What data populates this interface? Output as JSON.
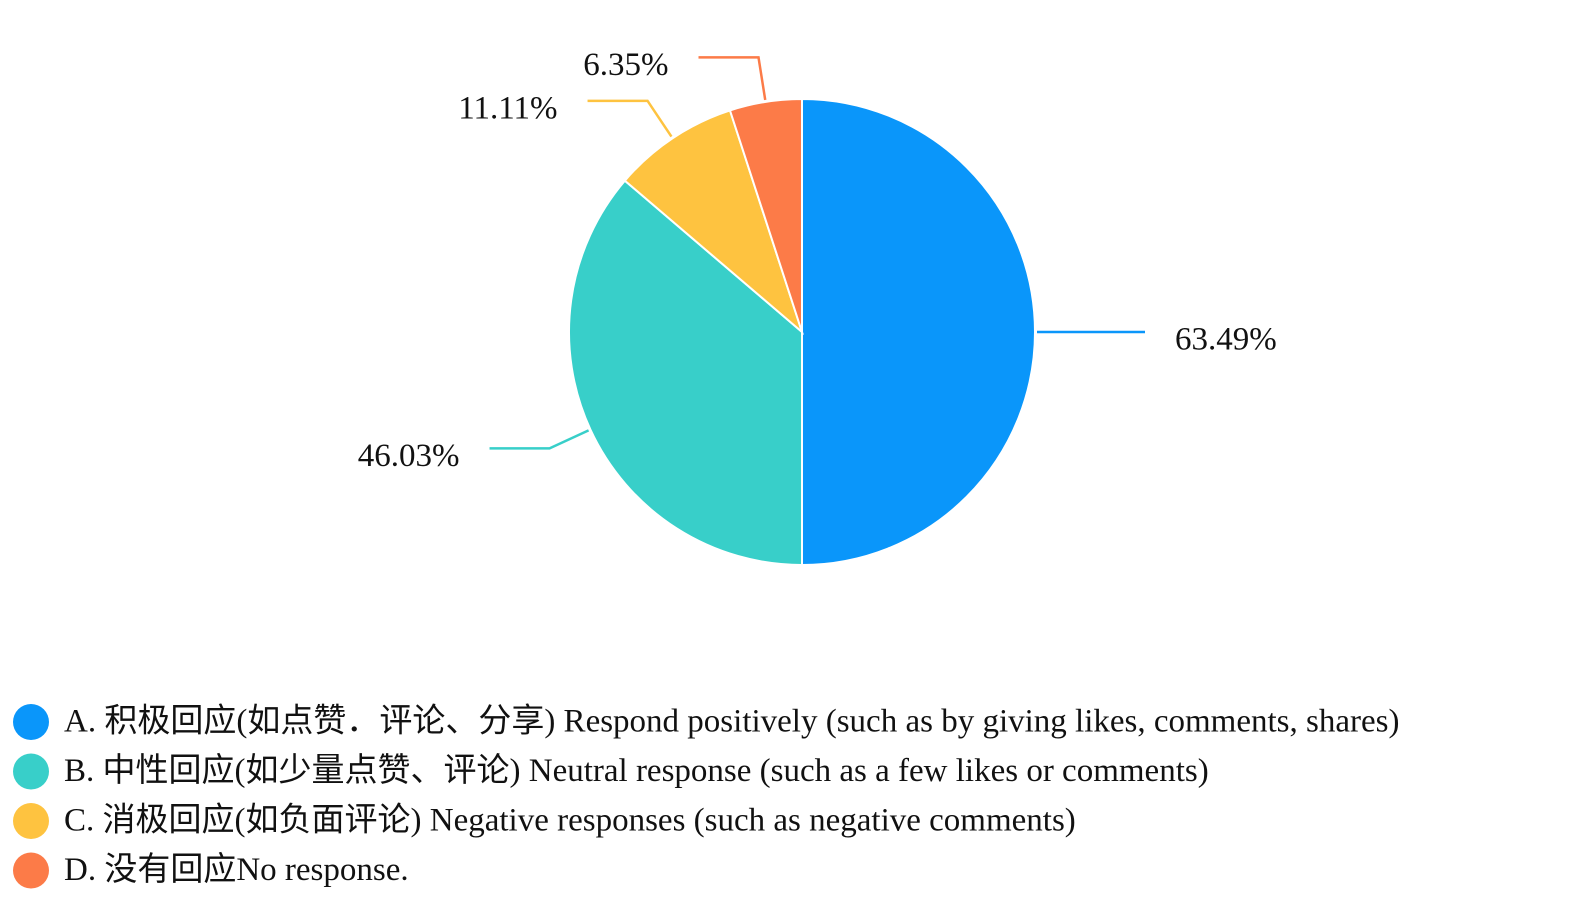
{
  "chart_data": {
    "type": "pie",
    "categories": [
      "A. 积极回应(如点赞．评论、分享) Respond positively (such as by giving likes, comments, shares)",
      "B. 中性回应(如少量点赞、评论) Neutral response (such as a few likes or comments)",
      "C. 消极回应(如负面评论) Negative responses (such as negative comments)",
      "D. 没有回应No response."
    ],
    "values": [
      63.49,
      46.03,
      11.11,
      6.35
    ],
    "value_labels": [
      "63.49%",
      "46.03%",
      "11.11%",
      "6.35%"
    ],
    "colors": [
      "#0a96fa",
      "#38cfc9",
      "#fec340",
      "#fc7b48"
    ]
  }
}
